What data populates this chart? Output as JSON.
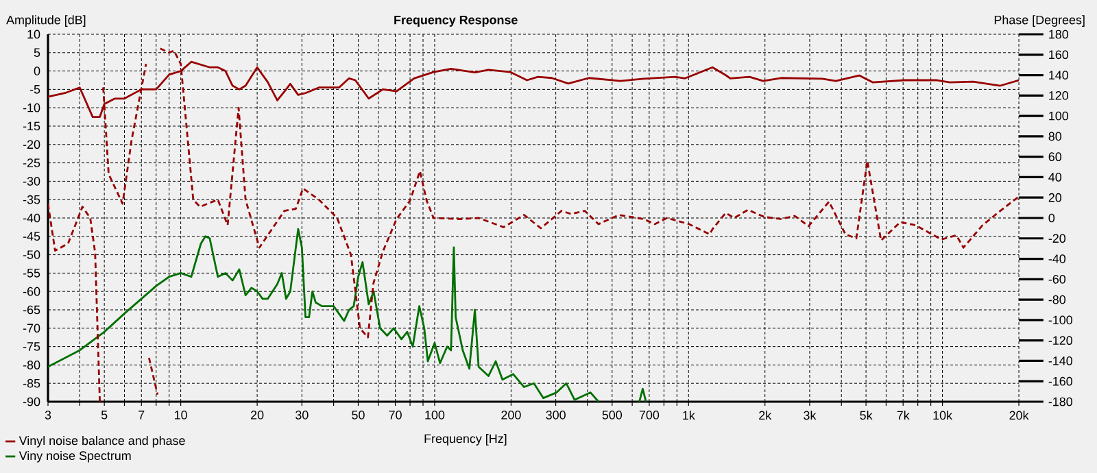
{
  "chart_data": {
    "type": "line",
    "title": "Frequency Response",
    "xlabel": "Frequency [Hz]",
    "ylabel": "Amplitude [dB]",
    "y2label": "Phase [Degrees]",
    "log": "x",
    "grid": true,
    "legend": "bottom left",
    "xlim": [
      3,
      20000
    ],
    "ylim": [
      -90,
      10
    ],
    "y2lim": [
      -180,
      180
    ],
    "xticks": [
      3,
      {
        "value": 4,
        "label": null
      },
      5,
      {
        "value": 6,
        "label": null
      },
      7,
      {
        "value": 8,
        "label": null
      },
      {
        "value": 9,
        "label": null
      },
      10,
      20,
      30,
      {
        "value": 40,
        "label": null
      },
      50,
      {
        "value": 60,
        "label": null
      },
      70,
      {
        "value": 80,
        "label": null
      },
      {
        "value": 90,
        "label": null
      },
      100,
      200,
      300,
      {
        "value": 400,
        "label": null
      },
      500,
      {
        "value": 600,
        "label": null
      },
      700,
      {
        "value": 800,
        "label": null
      },
      {
        "value": 900,
        "label": null
      },
      {
        "value": 1000,
        "label": "1k"
      },
      {
        "value": 2000,
        "label": "2k"
      },
      {
        "value": 3000,
        "label": "3k"
      },
      {
        "value": 4000,
        "label": null
      },
      {
        "value": 5000,
        "label": "5k"
      },
      {
        "value": 6000,
        "label": null
      },
      {
        "value": 7000,
        "label": "7k"
      },
      {
        "value": 8000,
        "label": null
      },
      {
        "value": 9000,
        "label": null
      },
      {
        "value": 10000,
        "label": "10k"
      },
      {
        "value": 20000,
        "label": "20k"
      }
    ],
    "yticks": [
      -90,
      -85,
      -80,
      -75,
      -70,
      -65,
      -60,
      -55,
      -50,
      -45,
      -40,
      -35,
      -30,
      -25,
      -20,
      -15,
      -10,
      -5,
      0,
      5,
      10
    ],
    "y2ticks": [
      -180,
      -160,
      -140,
      -120,
      -100,
      -80,
      -60,
      -40,
      -20,
      0,
      20,
      40,
      60,
      80,
      100,
      120,
      140,
      160,
      180
    ],
    "series": [
      {
        "name": "Vinyl noise balance and phase",
        "color": "#990000",
        "line_style": "solid",
        "x": [
          3,
          3.5,
          4,
          4.5,
          4.8,
          5,
          5.5,
          6,
          7,
          8,
          9,
          10,
          11,
          13,
          14,
          15,
          16,
          17,
          18,
          20,
          22,
          24,
          26,
          27,
          29,
          31,
          35,
          42,
          46,
          48.7,
          55,
          62.5,
          70.8,
          83,
          99,
          116,
          144,
          163,
          199,
          231,
          255,
          289,
          336,
          405,
          539,
          666,
          887,
          968,
          1242,
          1406,
          1460,
          1738,
          1968,
          2312,
          3360,
          3805,
          4700,
          5325,
          7090,
          9440,
          10700,
          13200,
          16900,
          20000
        ],
        "values": [
          -7,
          -6,
          -4.5,
          -12.5,
          -12.5,
          -9,
          -7.5,
          -7.5,
          -5,
          -5,
          -1,
          0,
          2.5,
          1,
          1,
          0,
          -4,
          -5,
          -4,
          1,
          -3,
          -8,
          -5,
          -3.5,
          -6.5,
          -6,
          -4.5,
          -4.5,
          -2,
          -2.5,
          -7.5,
          -5,
          -5.5,
          -2,
          -0.3,
          0.6,
          -0.4,
          0.3,
          -0.3,
          -2.5,
          -1.6,
          -1.9,
          -3.4,
          -1.9,
          -2.7,
          -2.1,
          -1.6,
          -2,
          1,
          -1.2,
          -2,
          -1.6,
          -2.7,
          -1.9,
          -2.1,
          -2.7,
          -1.2,
          -3.1,
          -2.5,
          -2.5,
          -3.1,
          -2.9,
          -4,
          -2.5
        ]
      },
      {
        "color": "#990000",
        "axis": "y2",
        "line_style": "dashed",
        "x": [
          3,
          3.2,
          3.6,
          4.1,
          4.4,
          4.6,
          4.8,
          4.9,
          4.95,
          5.2,
          5.9,
          6.4,
          7.3,
          7.4,
          7.5,
          8.1,
          8.2,
          8.3,
          9,
          9.4,
          10,
          11.2,
          11.9,
          14,
          15.3,
          16.9,
          18,
          20.4,
          25.6,
          28.4,
          30.3,
          35,
          41.3,
          46.8,
          50.8,
          54.6,
          57.4,
          62.5,
          70.8,
          80,
          87.5,
          93,
          99,
          127,
          149,
          187,
          225,
          262,
          316,
          344,
          390,
          442,
          532,
          666,
          736,
          823,
          1005,
          1211,
          1242,
          1400,
          1513,
          1714,
          1990,
          2312,
          2620,
          2970,
          3575,
          4150,
          4580,
          5060,
          5300,
          5730,
          6820,
          7820,
          9900,
          11350,
          12100,
          14400,
          16900,
          20000
        ],
        "values": [
          14,
          -32,
          -25,
          11,
          0,
          -34,
          -180,
          null,
          128,
          43,
          14,
          76,
          151,
          null,
          -137,
          -173,
          null,
          166,
          162,
          164,
          151,
          18,
          11,
          18,
          -7,
          108,
          18,
          -29,
          7,
          9,
          29,
          18,
          0,
          -36,
          -108,
          -117,
          -64,
          -33,
          -1,
          17,
          46,
          17,
          0,
          -1,
          0,
          -9,
          3,
          -10,
          7,
          4,
          7,
          -6,
          3,
          -1,
          -6,
          0,
          -6,
          -16,
          -11,
          5,
          0,
          8,
          1,
          -1,
          2,
          -8,
          16,
          -16,
          -20,
          56,
          27,
          -22,
          -4,
          -7,
          -21,
          -17,
          -29,
          -7,
          7,
          21
        ]
      },
      {
        "name": "Viny noise Spectrum",
        "color": "#007000",
        "line_style": "solid",
        "x": [
          3,
          4,
          5,
          6,
          7,
          8,
          9,
          10,
          11,
          12,
          12.5,
          13,
          14,
          15,
          16,
          17,
          18,
          19,
          20,
          21,
          22,
          24,
          25,
          26,
          27,
          29,
          30,
          31,
          32,
          33,
          34,
          36,
          40,
          44,
          46,
          48,
          50,
          52,
          55,
          57.5,
          61,
          65,
          69,
          74,
          78,
          82,
          87,
          91,
          94,
          100,
          105,
          112,
          116,
          119,
          121,
          129,
          137,
          144,
          149,
          163,
          174,
          185,
          204,
          225,
          246,
          268,
          302,
          330,
          356,
          411,
          442,
          450,
          640,
          660,
          680
        ],
        "values": [
          -80.5,
          -76,
          -71,
          -66,
          -62,
          -58.5,
          -56,
          -55,
          -56,
          -47,
          -45,
          -45.5,
          -56,
          -55,
          -57,
          -54,
          -61,
          -59,
          -60,
          -62,
          -62,
          -58,
          -55,
          -62,
          -60,
          -43,
          -48,
          -67,
          -67,
          -60,
          -63,
          -64,
          -64,
          -68,
          -65,
          -64,
          -56,
          -52,
          -63.5,
          -60,
          -70,
          -72,
          -70,
          -73,
          -71,
          -75,
          -64,
          -70,
          -79,
          -74,
          -79.5,
          -75,
          -76,
          -48,
          -67,
          -76,
          -81,
          -65,
          -80.5,
          -83,
          -79,
          -84,
          -82.5,
          -86,
          -85,
          -89,
          -87.5,
          -85,
          -89.5,
          -87.5,
          -90,
          null,
          -90,
          -86.5,
          -90
        ]
      }
    ]
  }
}
